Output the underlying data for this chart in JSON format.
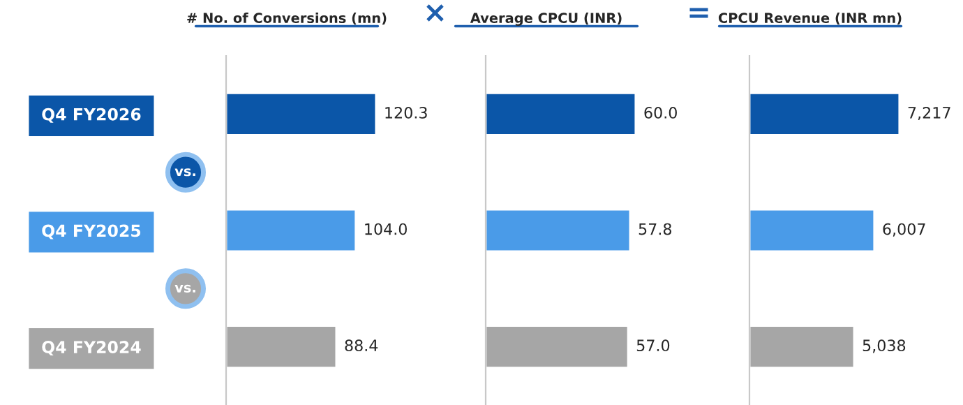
{
  "chart_data": [
    {
      "type": "bar",
      "orientation": "horizontal",
      "title": "# No. of Conversions (mn)",
      "categories": [
        "Q4 FY2026",
        "Q4 FY2025",
        "Q4 FY2024"
      ],
      "values": [
        120.3,
        104.0,
        88.4
      ],
      "value_labels": [
        "120.3",
        "104.0",
        "88.4"
      ],
      "colors": [
        "#0b56a8",
        "#4a9be8",
        "#a6a6a6"
      ],
      "tick_labels": "y",
      "annotations": [
        "vs.",
        "vs."
      ]
    },
    {
      "type": "bar",
      "orientation": "horizontal",
      "title": "Average CPCU (INR)",
      "values": [
        60.0,
        57.8,
        57.0
      ],
      "value_labels": [
        "60.0",
        "57.8",
        "57.0"
      ],
      "colors": [
        "#0b56a8",
        "#4a9be8",
        "#a6a6a6"
      ],
      "tick_labels": false,
      "annotations": [
        "×"
      ]
    },
    {
      "type": "bar",
      "orientation": "horizontal",
      "title": "CPCU Revenue (INR mn)",
      "values": [
        7217,
        6007,
        5038
      ],
      "value_labels": [
        "7,217",
        "6,007",
        "5,038"
      ],
      "colors": [
        "#0b56a8",
        "#4a9be8",
        "#a6a6a6"
      ],
      "tick_labels": false,
      "annotations": [
        "="
      ]
    }
  ]
}
